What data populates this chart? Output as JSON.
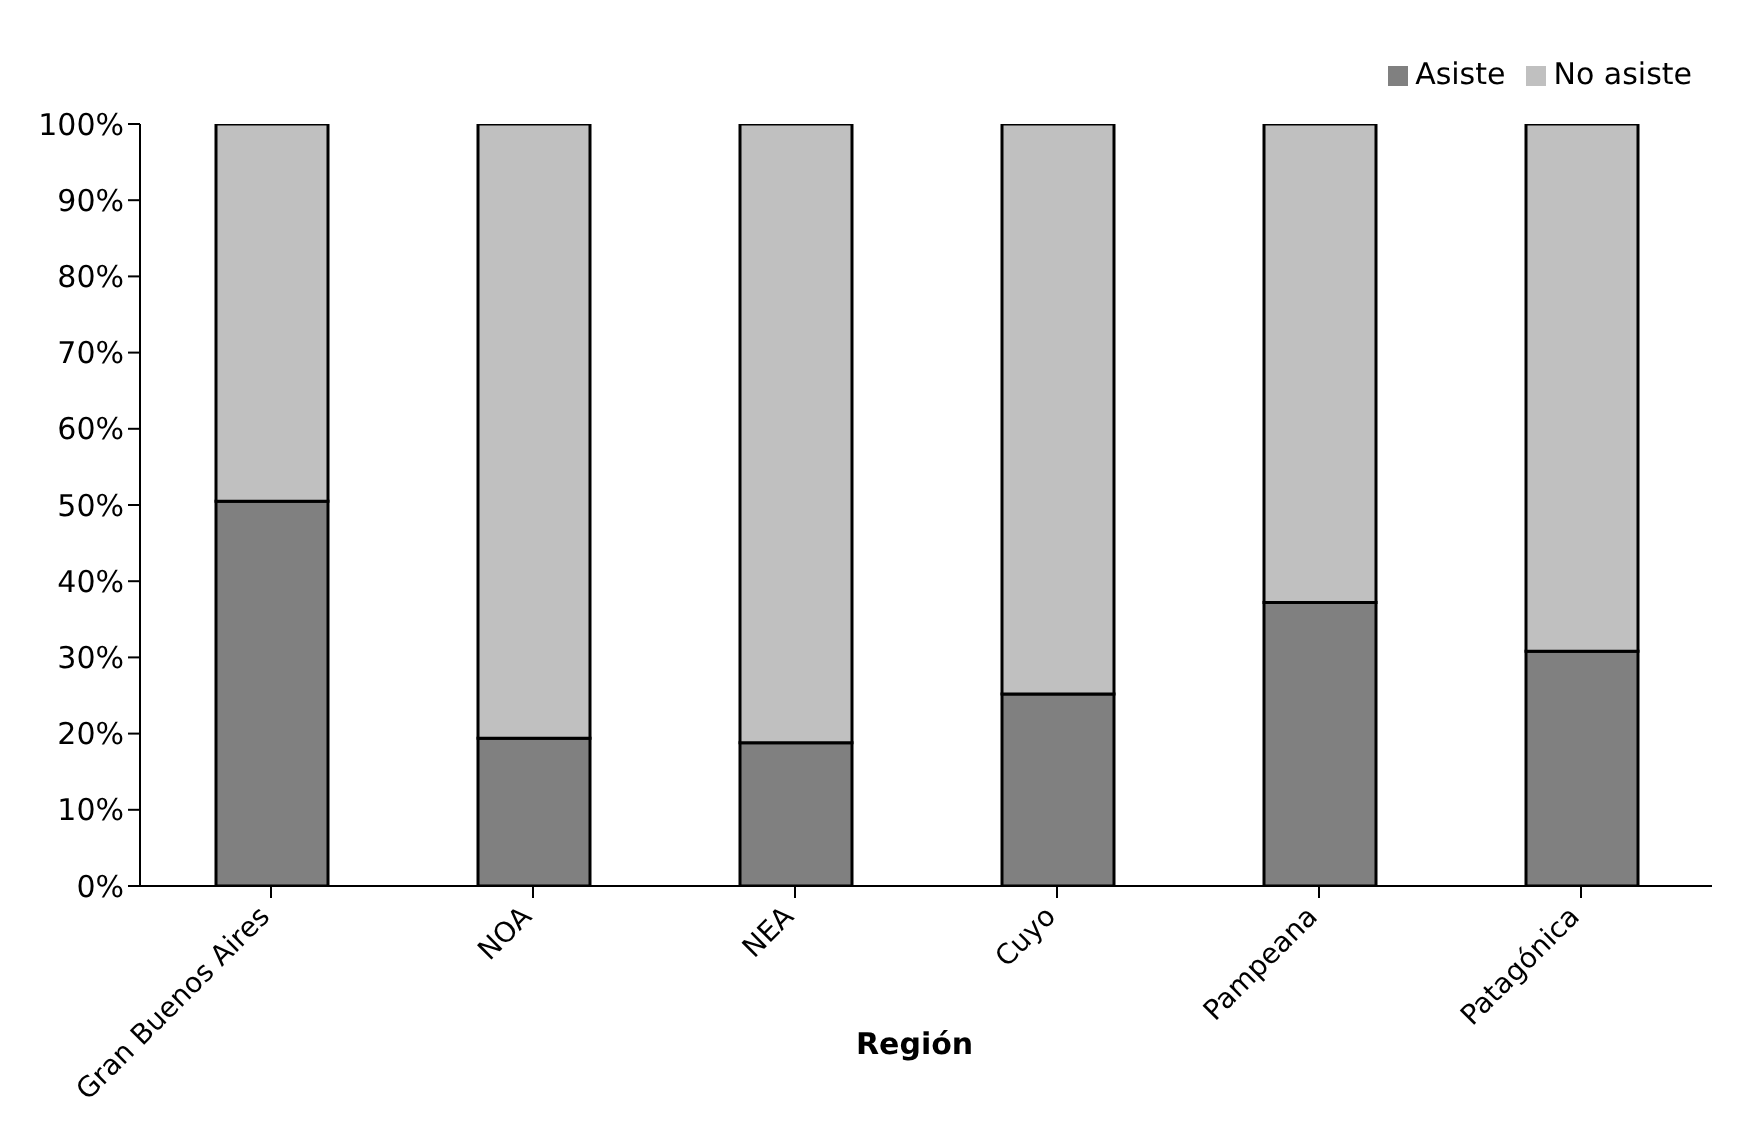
{
  "chart_data": {
    "type": "bar",
    "stacked": true,
    "xlabel": "Región",
    "categories": [
      "Gran Buenos Aires",
      "NOA",
      "NEA",
      "Cuyo",
      "Pampeana",
      "Patagónica"
    ],
    "series": [
      {
        "name": "Asiste",
        "color": "#808080",
        "values": [
          50.5,
          19.4,
          18.8,
          25.2,
          37.2,
          30.8
        ]
      },
      {
        "name": "No asiste",
        "color": "#c0c0c0",
        "values": [
          49.5,
          80.6,
          81.2,
          74.8,
          62.8,
          69.2
        ]
      }
    ],
    "ylim": [
      0,
      100
    ],
    "yticks": [
      {
        "value": 0,
        "label": "0%"
      },
      {
        "value": 10,
        "label": "10%"
      },
      {
        "value": 20,
        "label": "20%"
      },
      {
        "value": 30,
        "label": "30%"
      },
      {
        "value": 40,
        "label": "40%"
      },
      {
        "value": 50,
        "label": "50%"
      },
      {
        "value": 60,
        "label": "60%"
      },
      {
        "value": 70,
        "label": "70%"
      },
      {
        "value": 80,
        "label": "80%"
      },
      {
        "value": 90,
        "label": "90%"
      },
      {
        "value": 100,
        "label": "100%"
      }
    ],
    "grid": false,
    "legend": "top right"
  }
}
